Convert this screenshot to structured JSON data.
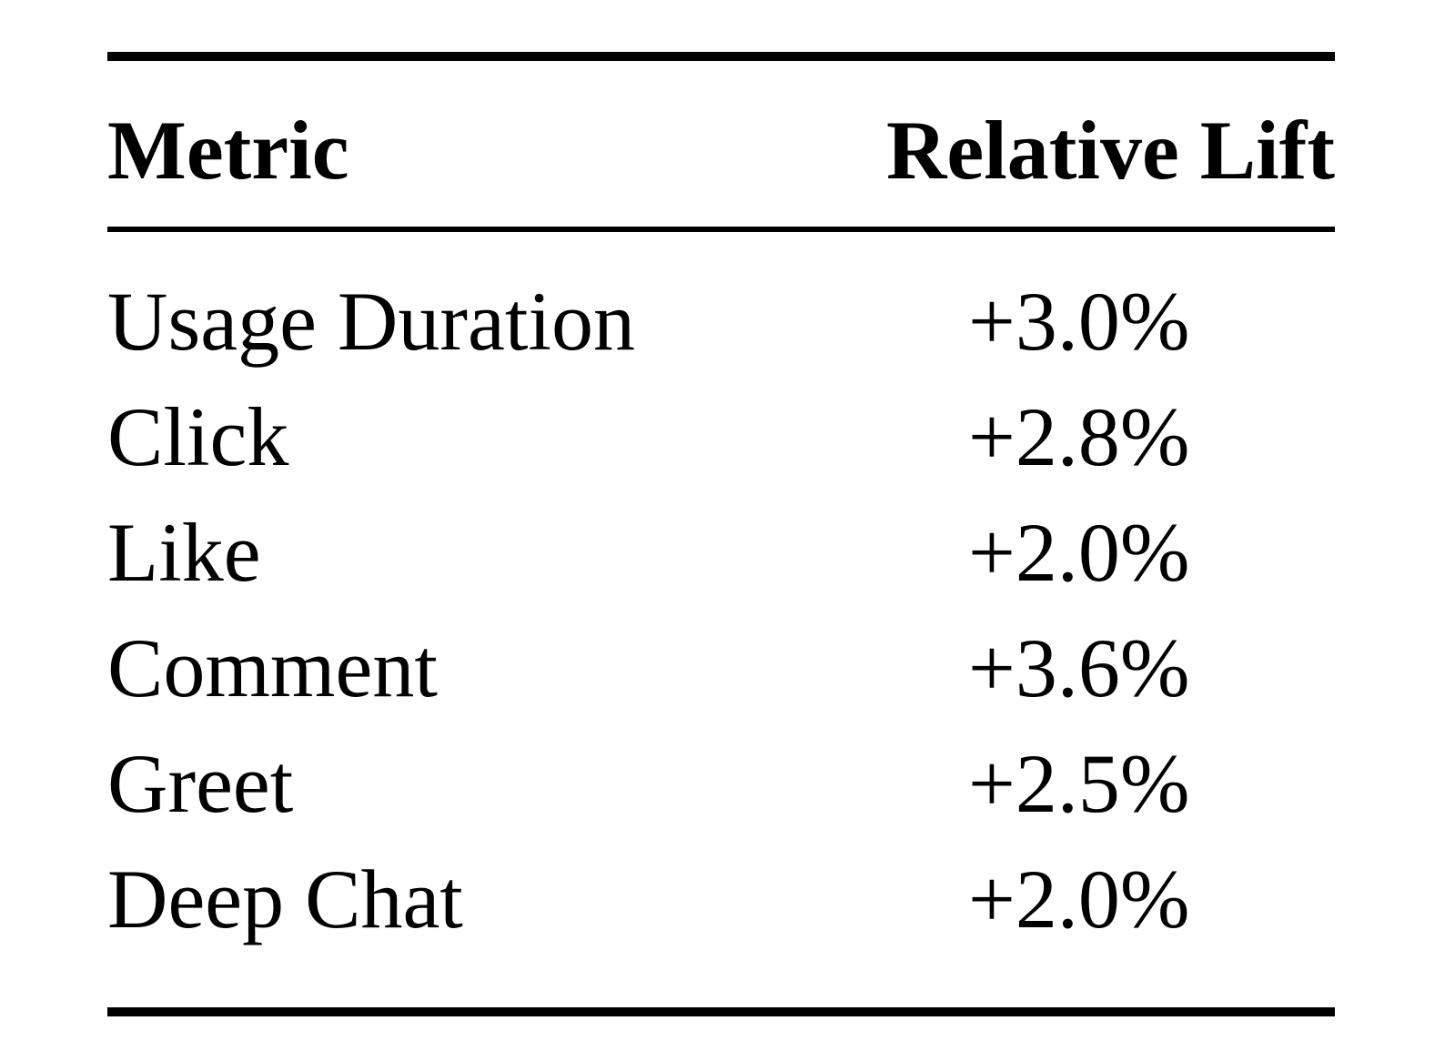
{
  "table": {
    "headers": {
      "metric": "Metric",
      "lift": "Relative Lift"
    },
    "rows": [
      {
        "metric": "Usage Duration",
        "lift": "+3.0%"
      },
      {
        "metric": "Click",
        "lift": "+2.8%"
      },
      {
        "metric": "Like",
        "lift": "+2.0%"
      },
      {
        "metric": "Comment",
        "lift": "+3.6%"
      },
      {
        "metric": "Greet",
        "lift": "+2.5%"
      },
      {
        "metric": "Deep Chat",
        "lift": "+2.0%"
      }
    ]
  }
}
